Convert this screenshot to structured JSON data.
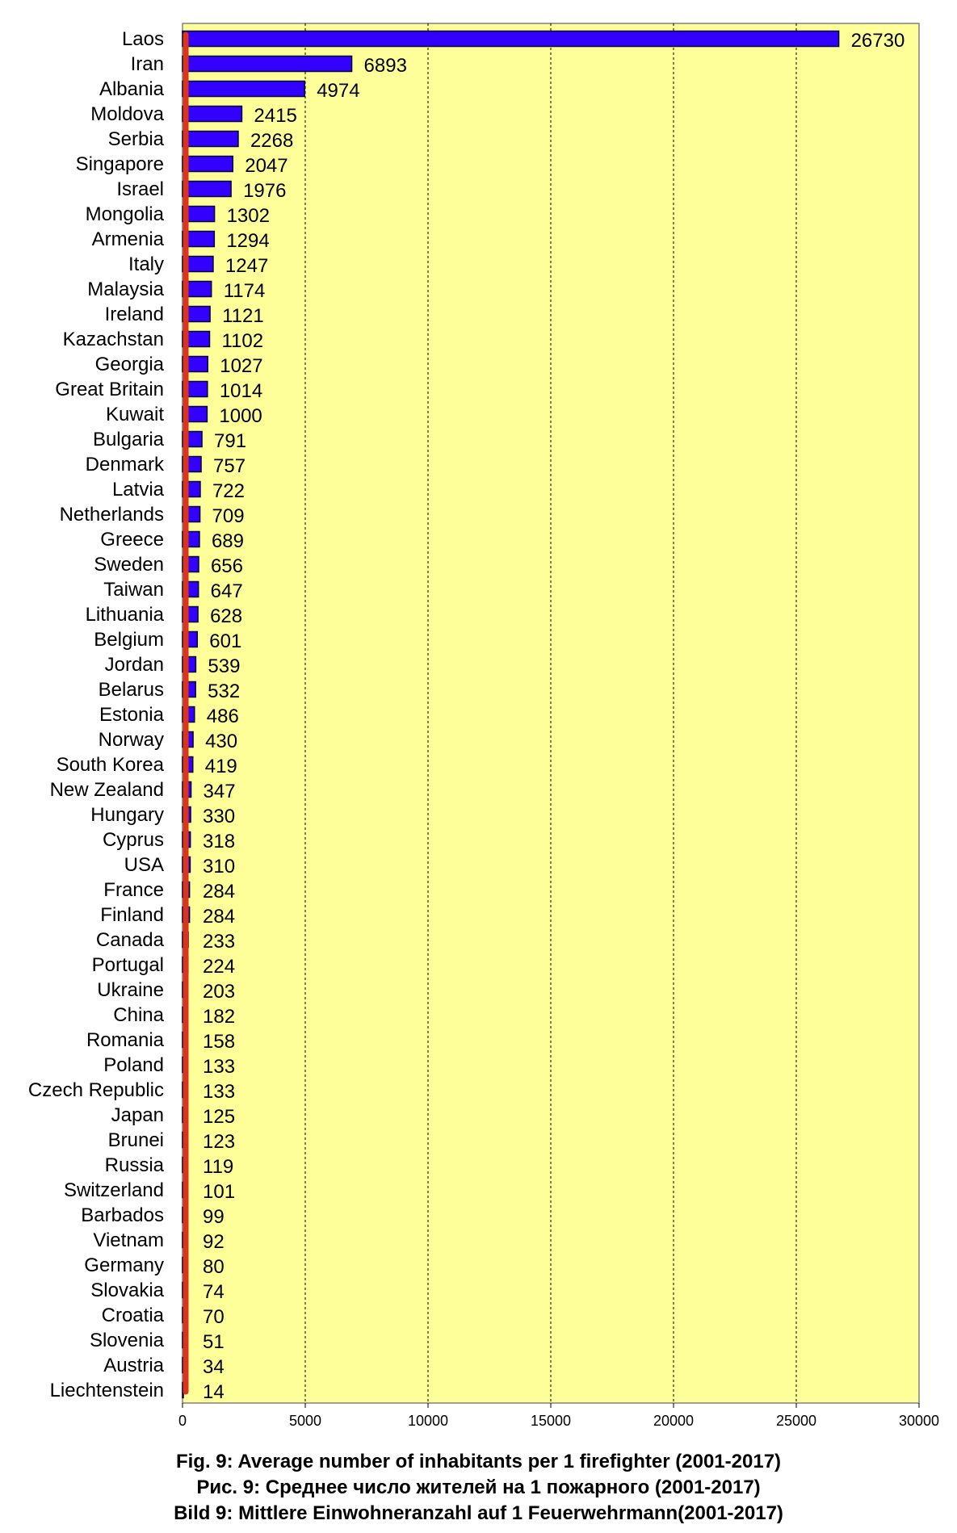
{
  "colors": {
    "plot_background": "#ffff99",
    "bar_fill": "#3300ff",
    "bar_stroke": "#000033",
    "axis_highlight": "#d9341e"
  },
  "chart_data": {
    "type": "bar",
    "orientation": "horizontal",
    "categories": [
      "Laos",
      "Iran",
      "Albania",
      "Moldova",
      "Serbia",
      "Singapore",
      "Israel",
      "Mongolia",
      "Armenia",
      "Italy",
      "Malaysia",
      "Ireland",
      "Kazachstan",
      "Georgia",
      "Great Britain",
      "Kuwait",
      "Bulgaria",
      "Denmark",
      "Latvia",
      "Netherlands",
      "Greece",
      "Sweden",
      "Taiwan",
      "Lithuania",
      "Belgium",
      "Jordan",
      "Belarus",
      "Estonia",
      "Norway",
      "South Korea",
      "New Zealand",
      "Hungary",
      "Cyprus",
      "USA",
      "France",
      "Finland",
      "Canada",
      "Portugal",
      "Ukraine",
      "China",
      "Romania",
      "Poland",
      "Czech Republic",
      "Japan",
      "Brunei",
      "Russia",
      "Switzerland",
      "Barbados",
      "Vietnam",
      "Germany",
      "Slovakia",
      "Croatia",
      "Slovenia",
      "Austria",
      "Liechtenstein"
    ],
    "values": [
      26730,
      6893,
      4974,
      2415,
      2268,
      2047,
      1976,
      1302,
      1294,
      1247,
      1174,
      1121,
      1102,
      1027,
      1014,
      1000,
      791,
      757,
      722,
      709,
      689,
      656,
      647,
      628,
      601,
      539,
      532,
      486,
      430,
      419,
      347,
      330,
      318,
      310,
      284,
      284,
      233,
      224,
      203,
      182,
      158,
      133,
      133,
      125,
      123,
      119,
      101,
      99,
      92,
      80,
      74,
      70,
      51,
      34,
      14
    ],
    "xlim": [
      0,
      30000
    ],
    "xticks": [
      0,
      5000,
      10000,
      15000,
      20000,
      25000,
      30000
    ],
    "grid": "vertical dashed",
    "data_labels": true
  },
  "caption": {
    "line1": "Fig. 9:  Average number of inhabitants per 1 firefighter (2001-2017)",
    "line2": "Рис. 9:  Среднее число жителей на 1 пожарного (2001-2017)",
    "line3": "Bild  9:  Mittlere Einwohneranzahl auf 1 Feuerwehrmann(2001-2017)"
  }
}
